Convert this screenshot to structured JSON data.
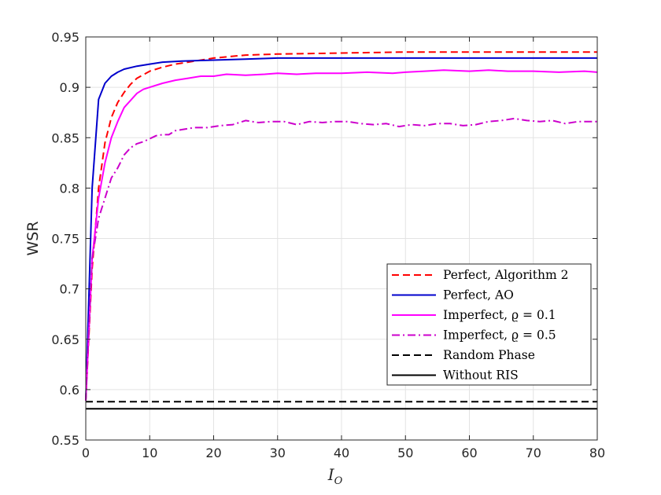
{
  "chart_data": {
    "type": "line",
    "title": "",
    "xlabel": "I",
    "xlabel_subscript": "O",
    "ylabel": "WSR",
    "xlim": [
      0,
      80
    ],
    "ylim": [
      0.55,
      0.95
    ],
    "xticks": [
      0,
      10,
      20,
      30,
      40,
      50,
      60,
      70,
      80
    ],
    "xtick_labels": [
      "0",
      "10",
      "20",
      "30",
      "40",
      "50",
      "60",
      "70",
      "80"
    ],
    "yticks": [
      0.55,
      0.6,
      0.65,
      0.7,
      0.75,
      0.8,
      0.85,
      0.9,
      0.95
    ],
    "ytick_labels": [
      "0.55",
      "0.6",
      "0.65",
      "0.7",
      "0.75",
      "0.8",
      "0.85",
      "0.9",
      "0.95"
    ],
    "grid": true,
    "legend_position": "lower-right",
    "series": [
      {
        "name": "Perfect, Algorithm 2",
        "color": "#ff0000",
        "style": "dashed",
        "x": [
          0,
          1,
          2,
          3,
          4,
          5,
          6,
          7,
          8,
          10,
          12,
          14,
          16,
          18,
          20,
          25,
          30,
          40,
          50,
          60,
          70,
          80
        ],
        "y": [
          0.589,
          0.72,
          0.8,
          0.845,
          0.87,
          0.885,
          0.895,
          0.903,
          0.909,
          0.916,
          0.92,
          0.923,
          0.925,
          0.927,
          0.929,
          0.932,
          0.933,
          0.934,
          0.935,
          0.935,
          0.935,
          0.935
        ]
      },
      {
        "name": "Perfect, AO",
        "color": "#0000cc",
        "style": "solid",
        "x": [
          0,
          1,
          2,
          3,
          4,
          5,
          6,
          8,
          10,
          12,
          15,
          20,
          25,
          30,
          40,
          50,
          60,
          70,
          80
        ],
        "y": [
          0.589,
          0.8,
          0.888,
          0.904,
          0.911,
          0.915,
          0.918,
          0.921,
          0.923,
          0.925,
          0.926,
          0.927,
          0.928,
          0.929,
          0.929,
          0.929,
          0.929,
          0.929,
          0.929
        ]
      },
      {
        "name": "Imperfect, ϱ = 0.1",
        "color": "#ff00ff",
        "style": "solid",
        "x": [
          0,
          1,
          2,
          3,
          4,
          5,
          6,
          7,
          8,
          9,
          10,
          12,
          14,
          16,
          18,
          20,
          22,
          25,
          28,
          30,
          33,
          36,
          40,
          44,
          48,
          50,
          53,
          56,
          60,
          63,
          66,
          70,
          74,
          78,
          80
        ],
        "y": [
          0.589,
          0.73,
          0.79,
          0.825,
          0.85,
          0.866,
          0.88,
          0.887,
          0.894,
          0.898,
          0.9,
          0.904,
          0.907,
          0.909,
          0.911,
          0.911,
          0.913,
          0.912,
          0.913,
          0.914,
          0.913,
          0.914,
          0.914,
          0.915,
          0.914,
          0.915,
          0.916,
          0.917,
          0.916,
          0.917,
          0.916,
          0.916,
          0.915,
          0.916,
          0.915
        ]
      },
      {
        "name": "Imperfect, ϱ = 0.5",
        "color": "#cc00cc",
        "style": "dashdot",
        "x": [
          0,
          1,
          2,
          3,
          4,
          5,
          6,
          7,
          8,
          9,
          10,
          11,
          12,
          13,
          14,
          15,
          17,
          19,
          21,
          23,
          25,
          27,
          29,
          31,
          33,
          35,
          37,
          39,
          41,
          43,
          45,
          47,
          49,
          51,
          53,
          55,
          57,
          59,
          61,
          63,
          65,
          67,
          69,
          71,
          73,
          75,
          77,
          80
        ],
        "y": [
          0.589,
          0.73,
          0.77,
          0.79,
          0.81,
          0.82,
          0.833,
          0.84,
          0.844,
          0.846,
          0.849,
          0.852,
          0.853,
          0.853,
          0.857,
          0.858,
          0.86,
          0.86,
          0.862,
          0.863,
          0.867,
          0.865,
          0.866,
          0.866,
          0.863,
          0.866,
          0.865,
          0.866,
          0.866,
          0.864,
          0.863,
          0.864,
          0.861,
          0.863,
          0.862,
          0.864,
          0.864,
          0.862,
          0.863,
          0.866,
          0.867,
          0.869,
          0.867,
          0.866,
          0.867,
          0.864,
          0.866,
          0.866
        ]
      },
      {
        "name": "Random Phase",
        "color": "#000000",
        "style": "dashed",
        "x": [
          0,
          80
        ],
        "y": [
          0.588,
          0.588
        ]
      },
      {
        "name": "Without RIS",
        "color": "#000000",
        "style": "solid",
        "x": [
          0,
          80
        ],
        "y": [
          0.581,
          0.581
        ]
      }
    ]
  }
}
